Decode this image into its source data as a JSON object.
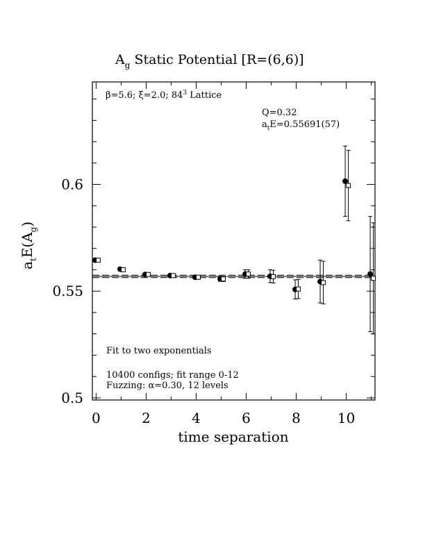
{
  "chart_data": {
    "type": "scatter",
    "title": "A",
    "title_sub": "g",
    "title_rest": " Static Potential [R=(6,6)]",
    "xlabel": "time separation",
    "ylabel": {
      "a": "a",
      "a_sub": "t",
      "mid": "E(A",
      "g_sub": "g",
      "end": ")"
    },
    "xlim": [
      -0.15,
      11.15
    ],
    "ylim": [
      0.499,
      0.648
    ],
    "x_ticks": [
      0,
      2,
      4,
      6,
      8,
      10
    ],
    "x_tick_labels": [
      "0",
      "2",
      "4",
      "6",
      "8",
      "10"
    ],
    "y_ticks": [
      0.5,
      0.55,
      0.6
    ],
    "y_tick_labels": [
      "0.5",
      "0.55",
      "0.6"
    ],
    "lattice_note": {
      "beta": "β=5.6; ",
      "xi": "ξ=2.0; 84",
      "sup": "3",
      "rest": " Lattice"
    },
    "fit_q": "Q=0.32",
    "fit_energy": {
      "a": "a",
      "sub": "t",
      "rest": "E=0.55691(57)"
    },
    "fit_band": {
      "center": 0.55691,
      "error": 0.00057,
      "xrange": [
        -0.15,
        11.15
      ]
    },
    "notes": [
      "Fit to two exponentials",
      "10400 configs; fit range 0-12",
      "Fuzzing: α=0.30, 12 levels"
    ],
    "series": [
      {
        "marker": "filled-circle",
        "x": [
          0,
          1,
          2,
          3,
          4,
          5,
          6,
          7,
          8,
          9,
          10,
          11
        ],
        "y": [
          0.5645,
          0.5603,
          0.5578,
          0.5573,
          0.5565,
          0.5558,
          0.558,
          0.557,
          0.5508,
          0.5545,
          0.6015,
          0.558
        ],
        "err": [
          0.0005,
          0.0005,
          0.0006,
          0.0008,
          0.0009,
          0.0012,
          0.002,
          0.003,
          0.0045,
          0.01,
          0.0165,
          0.027
        ]
      },
      {
        "marker": "open-square",
        "x": [
          0,
          1,
          2,
          3,
          4,
          5,
          6,
          7,
          8,
          9,
          10,
          11
        ],
        "y": [
          0.5645,
          0.56,
          0.5578,
          0.5573,
          0.5565,
          0.5557,
          0.558,
          0.5568,
          0.551,
          0.554,
          0.5995,
          0.556
        ],
        "err": [
          0.0005,
          0.0005,
          0.0006,
          0.0008,
          0.0009,
          0.0012,
          0.002,
          0.003,
          0.0045,
          0.01,
          0.0165,
          0.026
        ]
      }
    ]
  }
}
